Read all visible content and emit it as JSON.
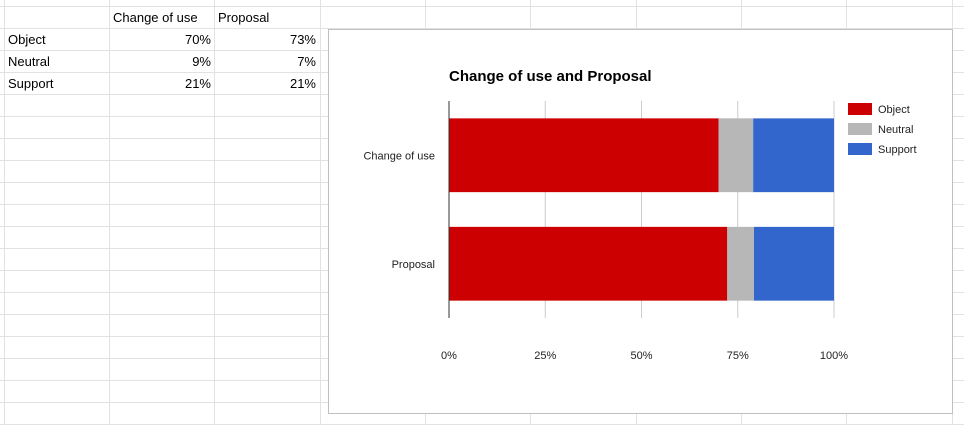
{
  "spreadsheet": {
    "headers": [
      "",
      "Change of use",
      "Proposal"
    ],
    "rows": [
      {
        "label": "Object",
        "change_of_use": "70%",
        "proposal": "73%"
      },
      {
        "label": "Neutral",
        "change_of_use": "9%",
        "proposal": "7%"
      },
      {
        "label": "Support",
        "change_of_use": "21%",
        "proposal": "21%"
      }
    ]
  },
  "chart_data": {
    "type": "bar",
    "orientation": "horizontal",
    "stacking": "percent",
    "title": "Change of use and Proposal",
    "categories": [
      "Change of use",
      "Proposal"
    ],
    "series": [
      {
        "name": "Object",
        "color": "#cc0000",
        "values": [
          70,
          73
        ]
      },
      {
        "name": "Neutral",
        "color": "#b7b7b7",
        "values": [
          9,
          7
        ]
      },
      {
        "name": "Support",
        "color": "#3366cc",
        "values": [
          21,
          21
        ]
      }
    ],
    "xlim": [
      0,
      100
    ],
    "xticks": [
      "0%",
      "25%",
      "50%",
      "75%",
      "100%"
    ],
    "grid": true,
    "legend": "right"
  }
}
